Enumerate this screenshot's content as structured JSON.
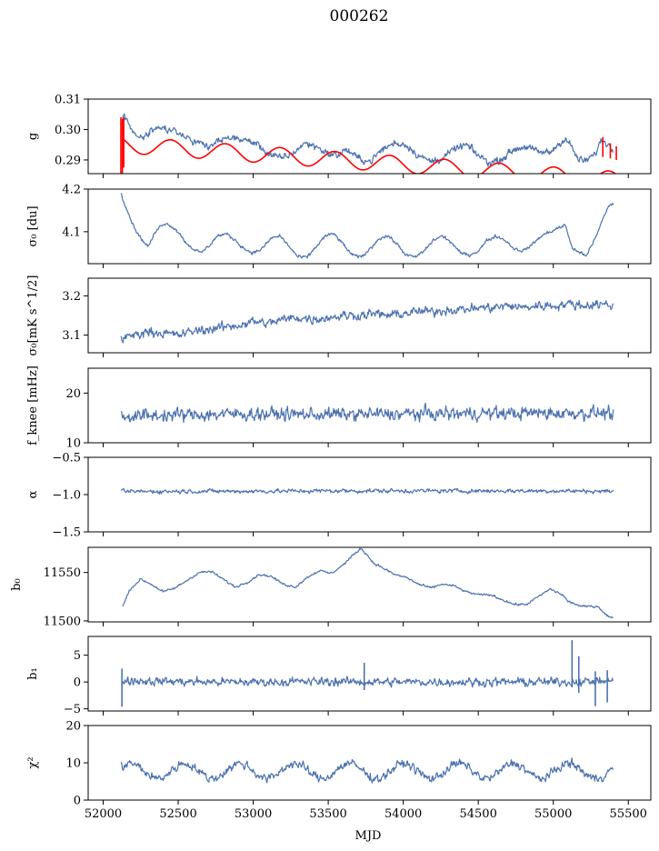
{
  "figure": {
    "title": "000262",
    "xlabel": "MJD"
  },
  "colors": {
    "series": "#4c72b0",
    "model": "#ff0000",
    "frame": "#000000"
  },
  "chart_data": [
    {
      "type": "line",
      "id": "g",
      "ylabel": "g",
      "xlim": [
        51900,
        55650
      ],
      "ylim": [
        0.2855,
        0.31
      ],
      "yticks": [
        0.29,
        0.3,
        0.31
      ],
      "ytick_labels": [
        "0.29",
        "0.30",
        "0.31"
      ],
      "series": [
        {
          "style": "noisy",
          "color": "#4c72b0",
          "noise": 0.0009,
          "x": [
            52125,
            52140,
            52160,
            52200,
            52260,
            52330,
            52400,
            52480,
            52550,
            52620,
            52700,
            52780,
            52860,
            52940,
            53020,
            53100,
            53180,
            53260,
            53340,
            53420,
            53500,
            53560,
            53620,
            53700,
            53780,
            53860,
            53940,
            54020,
            54100,
            54180,
            54260,
            54340,
            54420,
            54500,
            54580,
            54660,
            54740,
            54820,
            54900,
            54980,
            55040,
            55080,
            55120,
            55160,
            55200,
            55240,
            55280,
            55320,
            55360,
            55400
          ],
          "y": [
            0.302,
            0.305,
            0.303,
            0.299,
            0.297,
            0.3,
            0.3005,
            0.2995,
            0.2975,
            0.2955,
            0.294,
            0.2965,
            0.2975,
            0.2965,
            0.2955,
            0.292,
            0.2905,
            0.292,
            0.2955,
            0.2945,
            0.292,
            0.2915,
            0.2935,
            0.2905,
            0.2895,
            0.2935,
            0.2955,
            0.295,
            0.2915,
            0.2895,
            0.2905,
            0.2935,
            0.295,
            0.2915,
            0.289,
            0.2905,
            0.2935,
            0.2945,
            0.2925,
            0.2925,
            0.2955,
            0.297,
            0.2945,
            0.2905,
            0.2895,
            0.2905,
            0.292,
            0.2965,
            0.2955,
            0.293
          ]
        },
        {
          "style": "sine",
          "color": "#ff0000",
          "x_range": [
            52140,
            55420
          ],
          "base": 0.295,
          "slope": -3.5e-06,
          "amp": 0.0027,
          "period": 365,
          "phase": 52450,
          "spikes": [
            {
              "x": 52118,
              "y": [
                0.2855,
                0.304
              ]
            },
            {
              "x": 52128,
              "y": [
                0.2855,
                0.3035
              ]
            },
            {
              "x": 52137,
              "y": [
                0.2875,
                0.304
              ]
            },
            {
              "x": 55330,
              "y": [
                0.291,
                0.2975
              ]
            },
            {
              "x": 55380,
              "y": [
                0.2905,
                0.2955
              ]
            },
            {
              "x": 55420,
              "y": [
                0.29,
                0.2945
              ]
            }
          ]
        }
      ]
    },
    {
      "type": "line",
      "id": "sigma0_du",
      "ylabel": "σ₀ [du]",
      "xlim": [
        51900,
        55650
      ],
      "ylim": [
        4.025,
        4.2
      ],
      "yticks": [
        4.1,
        4.2
      ],
      "ytick_labels": [
        "4.1",
        "4.2"
      ],
      "series": [
        {
          "style": "noisy",
          "color": "#4c72b0",
          "noise": 0.003,
          "x": [
            52120,
            52150,
            52200,
            52250,
            52300,
            52350,
            52400,
            52450,
            52500,
            52550,
            52600,
            52650,
            52700,
            52760,
            52820,
            52880,
            52940,
            53000,
            53060,
            53120,
            53180,
            53240,
            53300,
            53360,
            53420,
            53480,
            53540,
            53600,
            53660,
            53720,
            53780,
            53840,
            53900,
            53960,
            54020,
            54080,
            54140,
            54200,
            54260,
            54320,
            54380,
            54440,
            54500,
            54560,
            54620,
            54680,
            54740,
            54800,
            54860,
            54920,
            54980,
            55040,
            55080,
            55110,
            55130,
            55180,
            55220,
            55260,
            55300,
            55340,
            55380,
            55400
          ],
          "y": [
            4.19,
            4.16,
            4.115,
            4.085,
            4.065,
            4.1,
            4.12,
            4.115,
            4.1,
            4.075,
            4.06,
            4.05,
            4.065,
            4.09,
            4.095,
            4.08,
            4.06,
            4.05,
            4.06,
            4.085,
            4.09,
            4.065,
            4.04,
            4.04,
            4.065,
            4.09,
            4.095,
            4.07,
            4.045,
            4.04,
            4.06,
            4.085,
            4.09,
            4.07,
            4.045,
            4.04,
            4.055,
            4.08,
            4.09,
            4.075,
            4.05,
            4.045,
            4.055,
            4.08,
            4.09,
            4.08,
            4.06,
            4.055,
            4.07,
            4.09,
            4.1,
            4.11,
            4.115,
            4.08,
            4.06,
            4.05,
            4.045,
            4.07,
            4.1,
            4.14,
            4.165,
            4.165
          ]
        }
      ]
    },
    {
      "type": "line",
      "id": "sigma0_mks",
      "ylabel": "σ₀[mK s^1/2]",
      "xlim": [
        51900,
        55650
      ],
      "ylim": [
        3.055,
        3.245
      ],
      "yticks": [
        3.1,
        3.2
      ],
      "ytick_labels": [
        "3.1",
        "3.2"
      ],
      "series": [
        {
          "style": "noisy",
          "color": "#4c72b0",
          "noise": 0.009,
          "x": [
            52120,
            52200,
            52300,
            52400,
            52500,
            52600,
            52700,
            52800,
            52900,
            53000,
            53100,
            53200,
            53300,
            53400,
            53500,
            53600,
            53700,
            53800,
            53900,
            54000,
            54100,
            54200,
            54300,
            54400,
            54500,
            54600,
            54700,
            54800,
            54900,
            55000,
            55100,
            55200,
            55300,
            55400
          ],
          "y": [
            3.09,
            3.1,
            3.11,
            3.105,
            3.1,
            3.11,
            3.115,
            3.12,
            3.125,
            3.135,
            3.13,
            3.14,
            3.145,
            3.14,
            3.145,
            3.15,
            3.15,
            3.155,
            3.15,
            3.155,
            3.16,
            3.16,
            3.165,
            3.165,
            3.17,
            3.17,
            3.175,
            3.17,
            3.175,
            3.175,
            3.18,
            3.175,
            3.18,
            3.175
          ]
        }
      ]
    },
    {
      "type": "line",
      "id": "fknee",
      "ylabel": "f_knee [mHz]",
      "xlim": [
        51900,
        55650
      ],
      "ylim": [
        10,
        25
      ],
      "yticks": [
        10,
        20
      ],
      "ytick_labels": [
        "10",
        "20"
      ],
      "series": [
        {
          "style": "noisy",
          "color": "#4c72b0",
          "noise": 1.0,
          "x": [
            52120,
            52500,
            53000,
            53500,
            54000,
            54500,
            55000,
            55400
          ],
          "y": [
            15.3,
            15.6,
            15.8,
            15.7,
            15.8,
            15.9,
            16.0,
            16.0
          ]
        }
      ]
    },
    {
      "type": "line",
      "id": "alpha",
      "ylabel": "α",
      "xlim": [
        51900,
        55650
      ],
      "ylim": [
        -1.5,
        -0.5
      ],
      "yticks": [
        -1.5,
        -1.0,
        -0.5
      ],
      "ytick_labels": [
        "−1.5",
        "−1.0",
        "−0.5"
      ],
      "series": [
        {
          "style": "noisy",
          "color": "#4c72b0",
          "noise": 0.022,
          "x": [
            52120,
            52500,
            53000,
            53500,
            54000,
            54500,
            55000,
            55400
          ],
          "y": [
            -0.96,
            -0.955,
            -0.955,
            -0.95,
            -0.95,
            -0.95,
            -0.95,
            -0.955
          ]
        }
      ]
    },
    {
      "type": "line",
      "id": "b0",
      "ylabel": "b₀",
      "xlim": [
        51900,
        55650
      ],
      "ylim": [
        11499,
        11576
      ],
      "yticks": [
        11500,
        11550
      ],
      "ytick_labels": [
        "11500",
        "11550"
      ],
      "series": [
        {
          "style": "noisy",
          "color": "#4c72b0",
          "noise": 0.9,
          "x": [
            52130,
            52180,
            52250,
            52320,
            52400,
            52480,
            52560,
            52640,
            52720,
            52800,
            52880,
            52960,
            53040,
            53120,
            53200,
            53280,
            53360,
            53440,
            53520,
            53600,
            53680,
            53720,
            53760,
            53800,
            53860,
            53940,
            54020,
            54100,
            54180,
            54260,
            54340,
            54420,
            54500,
            54580,
            54660,
            54740,
            54820,
            54900,
            54980,
            55060,
            55100,
            55140,
            55180,
            55240,
            55300,
            55340,
            55380,
            55400
          ],
          "y": [
            11515,
            11533,
            11543,
            11538,
            11530,
            11534,
            11542,
            11550,
            11551,
            11543,
            11535,
            11540,
            11548,
            11546,
            11538,
            11535,
            11545,
            11552,
            11549,
            11558,
            11570,
            11575,
            11568,
            11560,
            11555,
            11548,
            11545,
            11538,
            11534,
            11538,
            11536,
            11530,
            11527,
            11527,
            11522,
            11517,
            11517,
            11525,
            11533,
            11527,
            11520,
            11518,
            11515,
            11515,
            11515,
            11508,
            11503,
            11504
          ]
        }
      ]
    },
    {
      "type": "line",
      "id": "b1",
      "ylabel": "b₁",
      "xlim": [
        51900,
        55650
      ],
      "ylim": [
        -5.4,
        8.5
      ],
      "yticks": [
        -5,
        0,
        5
      ],
      "ytick_labels": [
        "−5",
        "0",
        "5"
      ],
      "series": [
        {
          "style": "noisy",
          "color": "#4c72b0",
          "noise": 0.6,
          "x": [
            52125,
            52300,
            52700,
            53100,
            53500,
            53900,
            54300,
            54700,
            55100,
            55400
          ],
          "y": [
            0.3,
            0.2,
            0.0,
            0.0,
            0.1,
            0.0,
            0.0,
            0.0,
            0.0,
            0.2
          ],
          "spikes": [
            {
              "x": 52125,
              "y": [
                -4.6,
                2.5
              ]
            },
            {
              "x": 53740,
              "y": [
                -1.5,
                3.6
              ]
            },
            {
              "x": 55125,
              "y": [
                -1.0,
                7.8
              ]
            },
            {
              "x": 55170,
              "y": [
                -2.0,
                4.8
              ]
            },
            {
              "x": 55280,
              "y": [
                -4.5,
                2.0
              ]
            },
            {
              "x": 55360,
              "y": [
                -3.8,
                2.2
              ]
            }
          ]
        }
      ]
    },
    {
      "type": "line",
      "id": "chi2",
      "ylabel": "χ²",
      "xlim": [
        51900,
        55650
      ],
      "ylim": [
        0,
        20
      ],
      "yticks": [
        0,
        10,
        20
      ],
      "ytick_labels": [
        "0",
        "10",
        "20"
      ],
      "series": [
        {
          "style": "sine_noisy",
          "color": "#4c72b0",
          "x_range": [
            52120,
            55400
          ],
          "base": 7.8,
          "slope": 0,
          "amp": 2.0,
          "period": 365,
          "phase": 52180,
          "noise": 0.9
        }
      ]
    }
  ],
  "xaxis": {
    "ticks": [
      52000,
      52500,
      53000,
      53500,
      54000,
      54500,
      55000,
      55500
    ],
    "tick_labels": [
      "52000",
      "52500",
      "53000",
      "53500",
      "54000",
      "54500",
      "55000",
      "55500"
    ]
  }
}
